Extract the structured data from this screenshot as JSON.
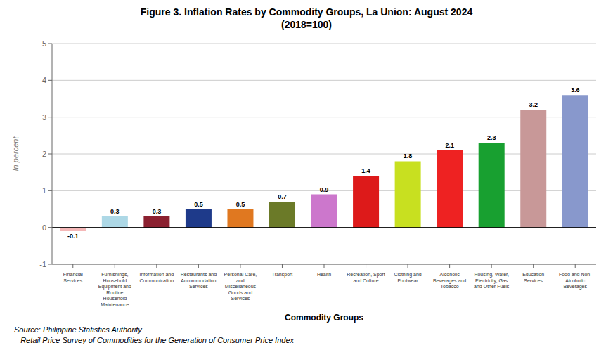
{
  "chart_data": {
    "type": "bar",
    "title": "Figure 3.   Inflation Rates by Commodity Groups, La Union: August 2024",
    "subtitle": "(2018=100)",
    "categories": [
      "Financial\nServices",
      "Furnishings,\nHousehold\nEquipment and\nRoutine\nHousehold\nMaintenance",
      "Information and\nCommunication",
      "Restaurants and\nAccommodation\nServices",
      "Personal Care,\nand\nMiscellaneous\nGoods and\nServices",
      "Transport",
      "Health",
      "Recreation, Sport\nand Culture",
      "Clothing and\nFootwear",
      "Alcoholic\nBeverages and\nTobacco",
      "Housing, Water,\nElectricity, Gas\nand Other Fuels",
      "Education\nServices",
      "Food and Non-\nAlcoholic\nBeverages"
    ],
    "values": [
      -0.1,
      0.3,
      0.3,
      0.5,
      0.5,
      0.7,
      0.9,
      1.4,
      1.8,
      2.1,
      2.3,
      3.2,
      3.6
    ],
    "colors": [
      "#f5b8b8",
      "#add8e6",
      "#8b2030",
      "#1e3a8a",
      "#e07820",
      "#6b7a28",
      "#cc77cc",
      "#dd1a1a",
      "#c8e020",
      "#ee2222",
      "#18a030",
      "#c89898",
      "#8898cc"
    ],
    "xlabel": "Commodity Groups",
    "ylabel": "In percent",
    "ylim": [
      -1.0,
      5.0
    ],
    "yticks": [
      -1,
      0,
      1,
      2,
      3,
      4,
      5
    ],
    "grid": true,
    "data_labels": true,
    "annotations": [
      "Source: Philippine Statistics Authority",
      "   Retail Price Survey of Commodities for the Generation of Consumer Price Index"
    ]
  }
}
